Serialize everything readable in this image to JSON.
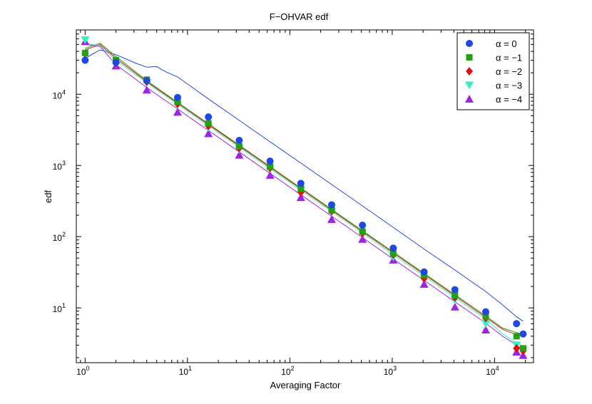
{
  "chart_data": {
    "type": "scatter",
    "title": "F−OHVAR edf",
    "xlabel": "Averaging Factor",
    "ylabel": "edf",
    "xscale": "log",
    "yscale": "log",
    "xlim": [
      0.82,
      24000
    ],
    "ylim": [
      1.7,
      80000
    ],
    "x_ticks": [
      {
        "base": "10",
        "exp": "0",
        "value": 1
      },
      {
        "base": "10",
        "exp": "1",
        "value": 10
      },
      {
        "base": "10",
        "exp": "2",
        "value": 100
      },
      {
        "base": "10",
        "exp": "3",
        "value": 1000
      },
      {
        "base": "10",
        "exp": "4",
        "value": 10000
      }
    ],
    "y_ticks": [
      {
        "base": "10",
        "exp": "1",
        "value": 10
      },
      {
        "base": "10",
        "exp": "2",
        "value": 100
      },
      {
        "base": "10",
        "exp": "3",
        "value": 1000
      },
      {
        "base": "10",
        "exp": "4",
        "value": 10000
      }
    ],
    "legend_position": "top-right",
    "x": [
      1,
      2,
      4,
      8,
      16,
      32,
      64,
      128,
      256,
      512,
      1024,
      2048,
      4096,
      8192,
      16384,
      19000
    ],
    "series": [
      {
        "name": "α = 0",
        "color": "#1f47e6",
        "marker": "circle",
        "values": [
          30000,
          28000,
          15500,
          9000,
          4800,
          2250,
          1150,
          560,
          280,
          145,
          69,
          32,
          18,
          8.8,
          6.0,
          4.3
        ],
        "line": [
          [
            1,
            32000
          ],
          [
            1.4,
            42000
          ],
          [
            2,
            36000
          ],
          [
            3,
            28000
          ],
          [
            4,
            24000
          ],
          [
            5,
            24500
          ],
          [
            6,
            21000
          ],
          [
            8,
            17500
          ],
          [
            16,
            8600
          ],
          [
            32,
            4300
          ],
          [
            64,
            2150
          ],
          [
            128,
            1080
          ],
          [
            256,
            540
          ],
          [
            512,
            270
          ],
          [
            1024,
            135
          ],
          [
            2048,
            67
          ],
          [
            4096,
            34
          ],
          [
            8192,
            17
          ],
          [
            12000,
            11
          ],
          [
            16384,
            7.5
          ],
          [
            19000,
            6.5
          ]
        ]
      },
      {
        "name": "α = −1",
        "color": "#26a10e",
        "marker": "square",
        "values": [
          38000,
          30000,
          16000,
          7800,
          3900,
          1850,
          960,
          470,
          235,
          118,
          58,
          29,
          15,
          7.6,
          4.0,
          2.7
        ],
        "line": [
          [
            1,
            44000
          ],
          [
            1.4,
            52000
          ],
          [
            2,
            34000
          ],
          [
            4,
            15500
          ],
          [
            8,
            7700
          ],
          [
            16,
            3850
          ],
          [
            32,
            1930
          ],
          [
            64,
            965
          ],
          [
            128,
            483
          ],
          [
            256,
            242
          ],
          [
            512,
            121
          ],
          [
            1024,
            61
          ],
          [
            2048,
            30.5
          ],
          [
            4096,
            15.3
          ],
          [
            8192,
            7.7
          ],
          [
            12000,
            5.2
          ],
          [
            16384,
            4.5
          ],
          [
            19000,
            4.2
          ]
        ]
      },
      {
        "name": "α = −2",
        "color": "#e60f0f",
        "marker": "diamond",
        "values": [
          37000,
          27500,
          15000,
          7300,
          3600,
          1750,
          920,
          420,
          228,
          112,
          56,
          26,
          14,
          7.2,
          2.7,
          2.5
        ],
        "line": [
          [
            1,
            42000
          ],
          [
            1.4,
            50000
          ],
          [
            2,
            32000
          ],
          [
            4,
            15000
          ],
          [
            8,
            7500
          ],
          [
            16,
            3750
          ],
          [
            32,
            1880
          ],
          [
            64,
            940
          ],
          [
            128,
            470
          ],
          [
            256,
            235
          ],
          [
            512,
            118
          ],
          [
            1024,
            59
          ],
          [
            2048,
            29.5
          ],
          [
            4096,
            14.8
          ],
          [
            8192,
            7.4
          ],
          [
            12000,
            5.0
          ],
          [
            16384,
            4.2
          ],
          [
            19000,
            4.0
          ]
        ]
      },
      {
        "name": "α = −3",
        "color": "#33f2bf",
        "marker": "triangle-down",
        "values": [
          58000,
          27000,
          14500,
          7100,
          3400,
          1680,
          900,
          450,
          225,
          110,
          52,
          26,
          13,
          6.0,
          3.0,
          2.5
        ],
        "line": [
          [
            1,
            52000
          ],
          [
            1.4,
            48000
          ],
          [
            2,
            30000
          ],
          [
            4,
            14500
          ],
          [
            8,
            7200
          ],
          [
            16,
            3600
          ],
          [
            32,
            1800
          ],
          [
            64,
            900
          ],
          [
            128,
            450
          ],
          [
            256,
            225
          ],
          [
            512,
            113
          ],
          [
            1024,
            56
          ],
          [
            2048,
            28
          ],
          [
            4096,
            14
          ],
          [
            8192,
            7
          ],
          [
            12000,
            4.3
          ],
          [
            16384,
            3.2
          ],
          [
            19000,
            2.9
          ]
        ]
      },
      {
        "name": "α = −4",
        "color": "#9b24e6",
        "marker": "triangle-up",
        "values": [
          55000,
          25000,
          11500,
          5600,
          2800,
          1400,
          730,
          355,
          175,
          92,
          47,
          21.5,
          10.3,
          4.9,
          2.4,
          2.15
        ],
        "line": [
          [
            1,
            50000
          ],
          [
            1.4,
            47000
          ],
          [
            2,
            26000
          ],
          [
            4,
            12400
          ],
          [
            8,
            6200
          ],
          [
            16,
            3100
          ],
          [
            32,
            1550
          ],
          [
            64,
            775
          ],
          [
            128,
            388
          ],
          [
            256,
            194
          ],
          [
            512,
            97
          ],
          [
            1024,
            48.5
          ],
          [
            2048,
            24.3
          ],
          [
            4096,
            12.2
          ],
          [
            8192,
            6.1
          ],
          [
            12000,
            4.0
          ],
          [
            16384,
            3.0
          ],
          [
            19000,
            2.6
          ]
        ]
      }
    ]
  }
}
